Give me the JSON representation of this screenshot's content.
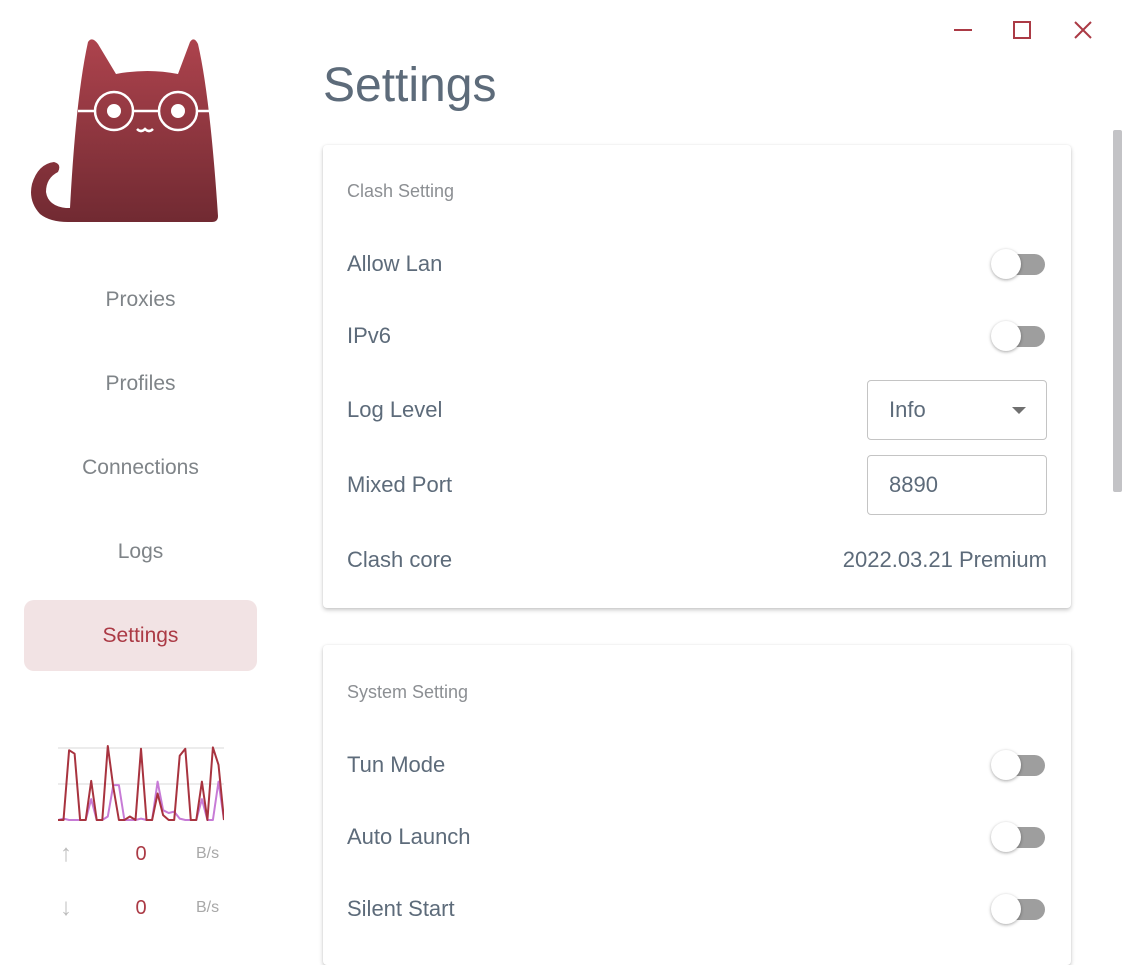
{
  "window": {
    "controls": [
      {
        "name": "minimize"
      },
      {
        "name": "maximize"
      },
      {
        "name": "close"
      }
    ],
    "accent": "#ab3a45"
  },
  "sidebar": {
    "items": [
      {
        "label": "Proxies"
      },
      {
        "label": "Profiles"
      },
      {
        "label": "Connections"
      },
      {
        "label": "Logs"
      },
      {
        "label": "Settings",
        "active": true
      }
    ],
    "traffic": {
      "up": {
        "value": "0",
        "unit": "B/s",
        "icon": "arrow-up-icon"
      },
      "down": {
        "value": "0",
        "unit": "B/s",
        "icon": "arrow-down-icon"
      }
    },
    "traffic_graph": {
      "upload": [
        0,
        0,
        100,
        95,
        0,
        0,
        56,
        0,
        0,
        106,
        47,
        0,
        0,
        5,
        0,
        102,
        0,
        0,
        38,
        7,
        0,
        0,
        92,
        102,
        0,
        0,
        55,
        0,
        104,
        79,
        0
      ],
      "download": [
        0,
        2,
        0,
        0,
        0,
        0,
        30,
        0,
        0,
        5,
        50,
        50,
        0,
        0,
        0,
        2,
        0,
        0,
        55,
        14,
        10,
        12,
        2,
        0,
        0,
        0,
        30,
        0,
        0,
        55,
        0
      ],
      "colors": {
        "upload": "#a8333f",
        "download": "#c77bd6"
      }
    }
  },
  "page": {
    "title": "Settings"
  },
  "clash_setting": {
    "title": "Clash Setting",
    "allow_lan": {
      "label": "Allow Lan",
      "on": false
    },
    "ipv6": {
      "label": "IPv6",
      "on": false
    },
    "log_level": {
      "label": "Log Level",
      "value": "Info"
    },
    "mixed_port": {
      "label": "Mixed Port",
      "value": "8890"
    },
    "clash_core": {
      "label": "Clash core",
      "value": "2022.03.21 Premium"
    }
  },
  "system_setting": {
    "title": "System Setting",
    "tun_mode": {
      "label": "Tun Mode",
      "on": false
    },
    "auto_launch": {
      "label": "Auto Launch",
      "on": false
    },
    "silent_start": {
      "label": "Silent Start",
      "on": false
    }
  }
}
